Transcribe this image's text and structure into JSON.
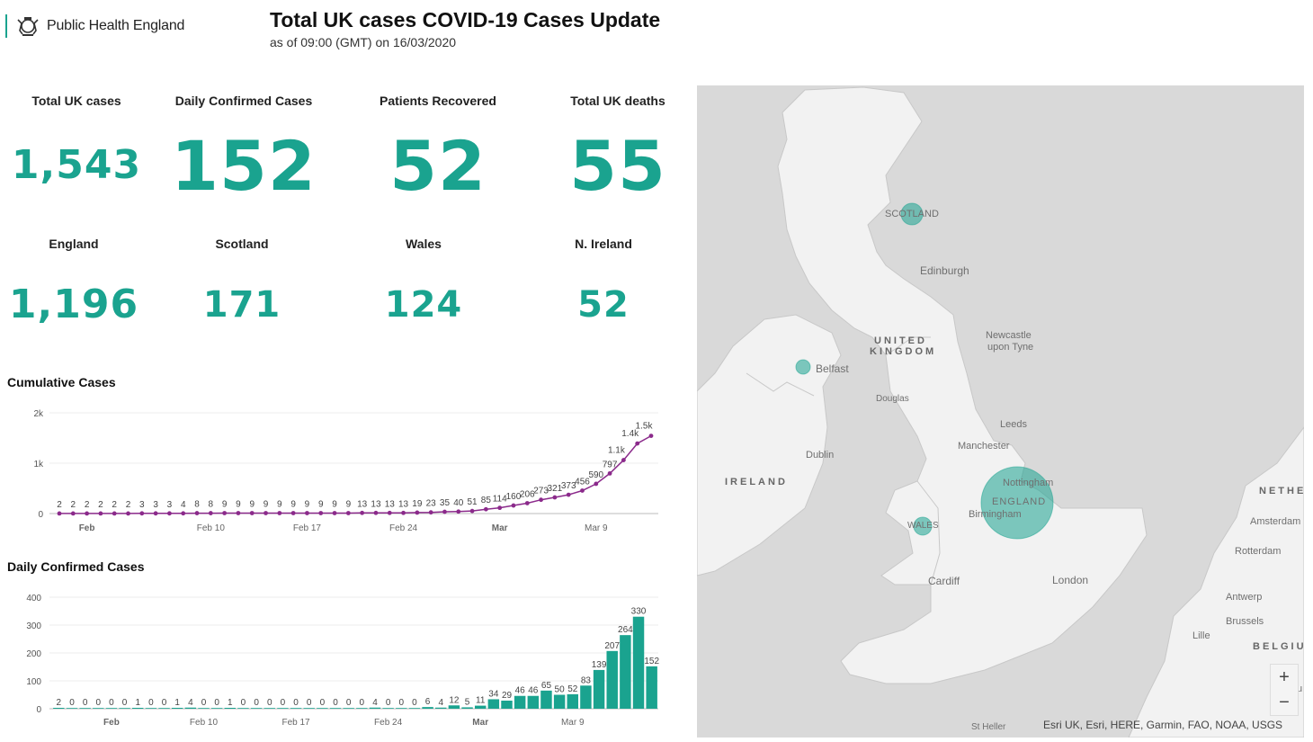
{
  "header": {
    "brand": "Public Health England",
    "title": "Total UK cases COVID-19 Cases Update",
    "subtitle": "as of 09:00 (GMT) on 16/03/2020"
  },
  "kpis": {
    "total_cases": {
      "label": "Total UK cases",
      "value": "1,543"
    },
    "daily_confirmed": {
      "label": "Daily Confirmed Cases",
      "value": "152"
    },
    "recovered": {
      "label": "Patients Recovered",
      "value": "52"
    },
    "deaths": {
      "label": "Total UK deaths",
      "value": "55"
    }
  },
  "regions": {
    "england": {
      "label": "England",
      "value": "1,196"
    },
    "scotland": {
      "label": "Scotland",
      "value": "171"
    },
    "wales": {
      "label": "Wales",
      "value": "124"
    },
    "ni": {
      "label": "N. Ireland",
      "value": "52"
    }
  },
  "colors": {
    "accent": "#1aa38f",
    "line": "#8b2a8b",
    "bar": "#1aa38f"
  },
  "map": {
    "labels": {
      "scotland": "SCOTLAND",
      "edinburgh": "Edinburgh",
      "uk": "UNITED",
      "uk2": "KINGDOM",
      "newcastle": "Newcastle",
      "newcastle2": "upon Tyne",
      "belfast": "Belfast",
      "douglas": "Douglas",
      "leeds": "Leeds",
      "manchester": "Manchester",
      "dublin": "Dublin",
      "ireland": "IRELAND",
      "nottingham": "Nottingham",
      "england": "ENGLAND",
      "birmingham": "Birmingham",
      "wales": "WALES",
      "cardiff": "Cardiff",
      "london": "London",
      "neth": "NETHE",
      "amsterdam": "Amsterdam",
      "rotterdam": "Rotterdam",
      "antwerp": "Antwerp",
      "brussels": "Brussels",
      "lille": "Lille",
      "belgium": "BELGIUM",
      "stheller": "St Heller",
      "edge_u": "u"
    },
    "zoom_in": "+",
    "zoom_out": "−",
    "attribution": "Esri UK, Esri, HERE, Garmin, FAO, NOAA, USGS"
  },
  "chart_data": [
    {
      "type": "line",
      "title": "Cumulative Cases",
      "x_tick_labels": [
        "Feb",
        "Feb 10",
        "Feb 17",
        "Feb 24",
        "Mar",
        "Mar 9"
      ],
      "y_tick_labels": [
        "0",
        "1k",
        "2k"
      ],
      "ylim": [
        0,
        2000
      ],
      "series": [
        {
          "values": [
            2,
            2,
            2,
            2,
            2,
            2,
            3,
            3,
            3,
            4,
            8,
            8,
            9,
            9,
            9,
            9,
            9,
            9,
            9,
            9,
            9,
            9,
            13,
            13,
            13,
            13,
            19,
            23,
            35,
            40,
            51,
            85,
            114,
            160,
            206,
            273,
            321,
            373,
            456,
            590,
            797,
            1061,
            1391,
            1543
          ]
        }
      ],
      "data_labels": [
        "2",
        "2",
        "2",
        "2",
        "2",
        "2",
        "3",
        "3",
        "3",
        "4",
        "8",
        "8",
        "9",
        "9",
        "9",
        "9",
        "9",
        "9",
        "9",
        "9",
        "9",
        "9",
        "13",
        "13",
        "13",
        "13",
        "19",
        "23",
        "35",
        "40",
        "51",
        "85",
        "114",
        "160",
        "206",
        "273",
        "321",
        "373",
        "456",
        "590",
        "797",
        "1.1k",
        "1.4k",
        "1.5k"
      ]
    },
    {
      "type": "bar",
      "title": "Daily Confirmed Cases",
      "x_tick_labels": [
        "Feb",
        "Feb 10",
        "Feb 17",
        "Feb 24",
        "Mar",
        "Mar 9"
      ],
      "y_tick_labels": [
        "0",
        "100",
        "200",
        "300",
        "400"
      ],
      "ylim": [
        0,
        400
      ],
      "values": [
        2,
        0,
        0,
        0,
        0,
        0,
        1,
        0,
        0,
        1,
        4,
        0,
        0,
        1,
        0,
        0,
        0,
        0,
        0,
        0,
        0,
        0,
        0,
        0,
        4,
        0,
        0,
        0,
        6,
        4,
        12,
        5,
        11,
        34,
        29,
        46,
        46,
        65,
        50,
        52,
        83,
        139,
        207,
        264,
        330,
        152
      ]
    }
  ]
}
